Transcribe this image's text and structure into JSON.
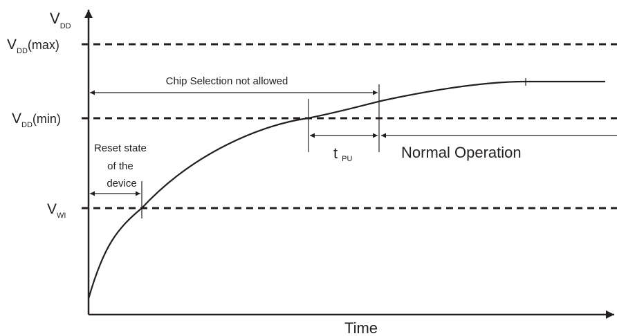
{
  "diagram": {
    "y_axis": {
      "symbol": "V",
      "subscript": "DD"
    },
    "x_axis": {
      "label": "Time"
    },
    "levels": {
      "vdd_max": {
        "symbol": "V",
        "subscript": "DD",
        "suffix": "(max)"
      },
      "vdd_min": {
        "symbol": "V",
        "subscript": "DD",
        "suffix": "(min)"
      },
      "vwi": {
        "symbol": "V",
        "subscript": "WI"
      }
    },
    "annotations": {
      "chip_selection": "Chip Selection not allowed",
      "reset_state": [
        "Reset state",
        "of the",
        "device"
      ],
      "tpu": {
        "symbol": "t",
        "subscript": "PU"
      },
      "normal_operation": "Normal Operation"
    }
  }
}
